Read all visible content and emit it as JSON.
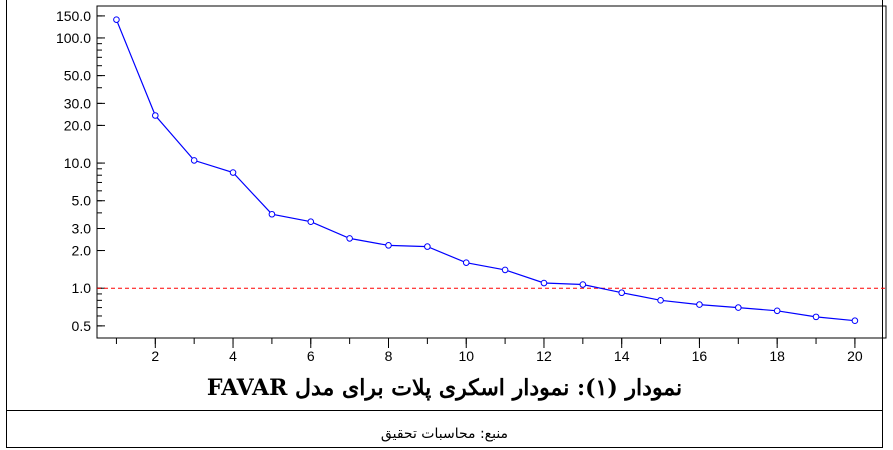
{
  "chart_data": {
    "type": "line",
    "x": [
      1,
      2,
      3,
      4,
      5,
      6,
      7,
      8,
      9,
      10,
      11,
      12,
      13,
      14,
      15,
      16,
      17,
      18,
      19,
      20
    ],
    "values": [
      140,
      24,
      10.5,
      8.4,
      3.9,
      3.4,
      2.5,
      2.2,
      2.15,
      1.6,
      1.4,
      1.1,
      1.07,
      0.92,
      0.8,
      0.74,
      0.7,
      0.66,
      0.59,
      0.55
    ],
    "reference_line": 1.0,
    "yscale": "log",
    "ylim": [
      0.4,
      180
    ],
    "xlim": [
      0.5,
      20.8
    ],
    "yticks": [
      "150.0",
      "100.0",
      "50.0",
      "30.0",
      "20.0",
      "10.0",
      "5.0",
      "3.0",
      "2.0",
      "1.0",
      "0.5"
    ],
    "ytick_values": [
      150,
      100,
      50,
      30,
      20,
      10,
      5,
      3,
      2,
      1,
      0.5
    ],
    "xticks": [
      "2",
      "4",
      "6",
      "8",
      "10",
      "12",
      "14",
      "16",
      "18",
      "20"
    ],
    "xtick_values": [
      2,
      4,
      6,
      8,
      10,
      12,
      14,
      16,
      18,
      20
    ],
    "grid": false,
    "series_color": "#0000ff",
    "reference_color": "#ff0000"
  },
  "caption": "نمودار (۱): نمودار اسکری پلات برای مدل FAVAR",
  "source": "منبع: محاسبات تحقیق"
}
